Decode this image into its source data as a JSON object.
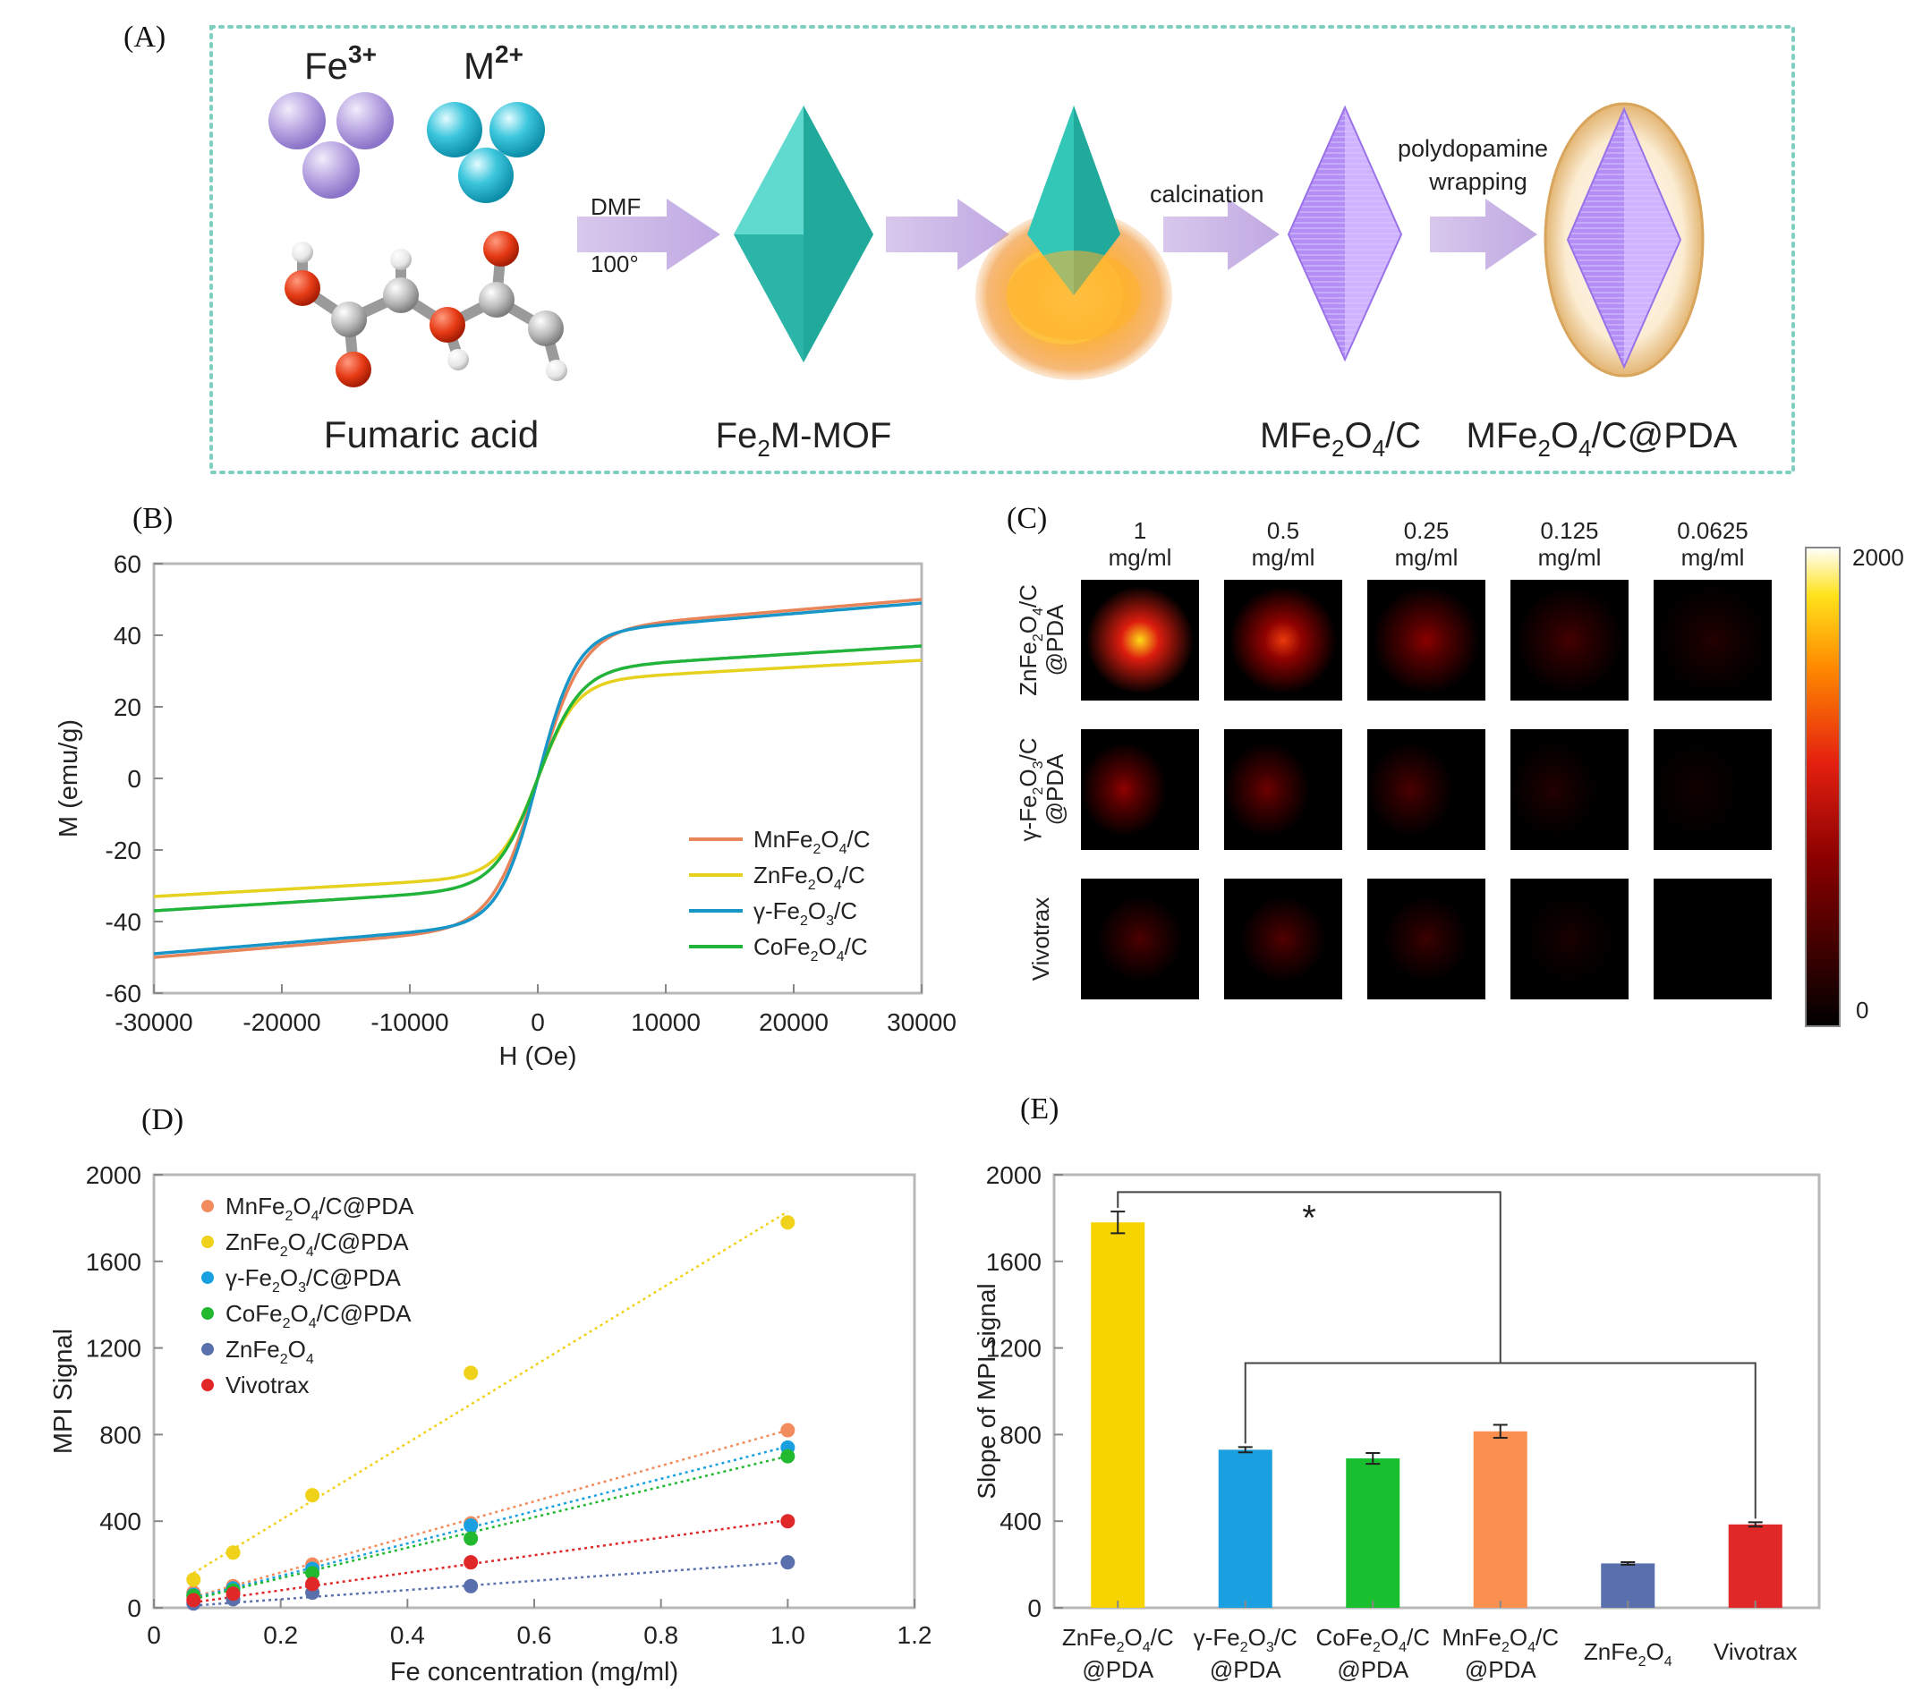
{
  "panels": {
    "A": {
      "letter": "(A)",
      "ions": [
        "Fe",
        "3+",
        "M",
        "2+"
      ],
      "labels": {
        "fumaric": "Fumaric acid",
        "mof_pre": "Fe",
        "mof_sub": "2",
        "mof_post": "M-MOF",
        "c_pre": "MFe",
        "c_sub1": "2",
        "c_mid": "O",
        "c_sub2": "4",
        "c_post": "/C",
        "pda_pre": "MFe",
        "pda_sub1": "2",
        "pda_mid": "O",
        "pda_sub2": "4",
        "pda_post": "/C@PDA"
      },
      "arrow_labels": {
        "dmf": "DMF",
        "temp": "100°",
        "calcination": "calcination",
        "pda1": "polydopamine",
        "pda2": "wrapping"
      }
    },
    "B": {
      "letter": "(B)"
    },
    "C": {
      "letter": "(C)",
      "concentrations": [
        {
          "value": "1",
          "unit": "mg/ml"
        },
        {
          "value": "0.5",
          "unit": "mg/ml"
        },
        {
          "value": "0.25",
          "unit": "mg/ml"
        },
        {
          "value": "0.125",
          "unit": "mg/ml"
        },
        {
          "value": "0.0625",
          "unit": "mg/ml"
        }
      ],
      "rows": [
        {
          "l1": "ZnFe₂O₄/C",
          "l2": "@PDA"
        },
        {
          "l1": "γ-Fe₂O₃/C",
          "l2": "@PDA"
        },
        {
          "l1": "Vivotrax",
          "l2": ""
        }
      ],
      "intensity": [
        [
          1780,
          1200,
          700,
          350,
          180
        ],
        [
          720,
          560,
          380,
          180,
          90
        ],
        [
          390,
          420,
          300,
          130,
          0
        ]
      ],
      "colorbar": {
        "max": "2000",
        "min": "0",
        "max_value": 2000
      }
    },
    "D": {
      "letter": "(D)"
    },
    "E": {
      "letter": "(E)",
      "significance": "*"
    }
  },
  "chart_data": [
    {
      "id": "B",
      "type": "line",
      "xlabel": "H (Oe)",
      "ylabel": "M (emu/g)",
      "xlim": [
        -30000,
        30000
      ],
      "ylim": [
        -60,
        60
      ],
      "xticks": [
        "-30000",
        "-20000",
        "-10000",
        "0",
        "10000",
        "20000",
        "30000"
      ],
      "yticks": [
        "60",
        "40",
        "20",
        "0",
        "-20",
        "-40",
        "-60"
      ],
      "legend_position": "bottom-right",
      "series": [
        {
          "name": "MnFe₂O₄/C",
          "color": "#e8845a",
          "ms": 50,
          "xs": 3500
        },
        {
          "name": "ZnFe₂O₄/C",
          "color": "#e6d21e",
          "ms": 33,
          "xs": 3000
        },
        {
          "name": "γ-Fe₂O₃/C",
          "color": "#1896c8",
          "ms": 49,
          "xs": 3000
        },
        {
          "name": "CoFe₂O₄/C",
          "color": "#22b33a",
          "ms": 37,
          "xs": 3300
        }
      ]
    },
    {
      "id": "D",
      "type": "scatter",
      "xlabel": "Fe concentration (mg/ml)",
      "ylabel": "MPI Signal",
      "xlim": [
        0,
        1.2
      ],
      "ylim": [
        0,
        2000
      ],
      "xticks": [
        "0",
        "0.2",
        "0.4",
        "0.6",
        "0.8",
        "1.0",
        "1.2"
      ],
      "yticks": [
        "0",
        "400",
        "800",
        "1200",
        "1600",
        "2000"
      ],
      "x": [
        0.0625,
        0.125,
        0.25,
        0.5,
        1.0
      ],
      "legend_position": "top-left",
      "series": [
        {
          "name": "MnFe₂O₄/C@PDA",
          "color": "#f28c5e",
          "values": [
            70,
            100,
            200,
            390,
            820
          ],
          "fit": [
            [
              0.0625,
              50
            ],
            [
              1.0,
              820
            ]
          ]
        },
        {
          "name": "ZnFe₂O₄/C@PDA",
          "color": "#f0d21a",
          "values": [
            130,
            255,
            520,
            1085,
            1780
          ],
          "fit": [
            [
              0.0625,
              160
            ],
            [
              1.0,
              1830
            ]
          ]
        },
        {
          "name": "γ-Fe₂O₃/C@PDA",
          "color": "#1aa0e0",
          "values": [
            60,
            90,
            180,
            380,
            740
          ],
          "fit": [
            [
              0.0625,
              45
            ],
            [
              1.0,
              745
            ]
          ]
        },
        {
          "name": "CoFe₂O₄/C@PDA",
          "color": "#22b830",
          "values": [
            55,
            80,
            160,
            320,
            700
          ],
          "fit": [
            [
              0.0625,
              40
            ],
            [
              1.0,
              700
            ]
          ]
        },
        {
          "name": "ZnFe₂O₄",
          "color": "#5a70ad",
          "values": [
            20,
            40,
            70,
            100,
            210
          ],
          "fit": [
            [
              0.0625,
              10
            ],
            [
              1.0,
              210
            ]
          ]
        },
        {
          "name": "Vivotrax",
          "color": "#e02828",
          "values": [
            35,
            65,
            110,
            210,
            400
          ],
          "fit": [
            [
              0.0625,
              25
            ],
            [
              1.0,
              405
            ]
          ]
        }
      ]
    },
    {
      "id": "E",
      "type": "bar",
      "ylabel": "Slope of MPI signal",
      "ylim": [
        0,
        2000
      ],
      "yticks": [
        "0",
        "400",
        "800",
        "1200",
        "1600",
        "2000"
      ],
      "categories": [
        {
          "l1": "ZnFe₂O₄/C",
          "l2": "@PDA"
        },
        {
          "l1": "γ-Fe₂O₃/C",
          "l2": "@PDA"
        },
        {
          "l1": "CoFe₂O₄/C",
          "l2": "@PDA"
        },
        {
          "l1": "MnFe₂O₄/C",
          "l2": "@PDA"
        },
        {
          "l1": "ZnFe₂O₄",
          "l2": ""
        },
        {
          "l1": "Vivotrax",
          "l2": ""
        }
      ],
      "values": [
        1780,
        730,
        690,
        815,
        205,
        385
      ],
      "errors": [
        50,
        12,
        25,
        30,
        6,
        10
      ],
      "colors": [
        "#f7d400",
        "#1aa0e0",
        "#18c030",
        "#fa9050",
        "#5a70ad",
        "#e02828"
      ]
    }
  ]
}
